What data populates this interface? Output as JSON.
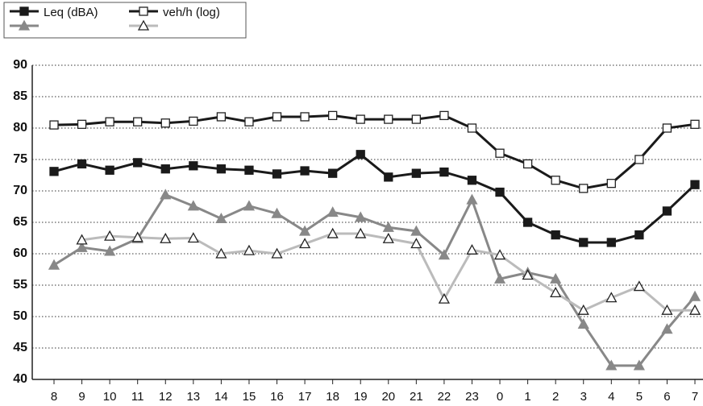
{
  "chart_data": {
    "type": "line",
    "categories": [
      "8",
      "9",
      "10",
      "11",
      "12",
      "13",
      "14",
      "15",
      "16",
      "17",
      "18",
      "19",
      "20",
      "21",
      "22",
      "23",
      "0",
      "1",
      "2",
      "3",
      "4",
      "5",
      "6",
      "7"
    ],
    "ylim": [
      40,
      90
    ],
    "yticks": [
      40,
      45,
      50,
      55,
      60,
      65,
      70,
      75,
      80,
      85,
      90
    ],
    "grid": true,
    "legend": [
      {
        "name": "Leq (dBA)",
        "series": [
          {
            "color": "#1a1a1a",
            "marker": "square",
            "filled": true,
            "values": [
              73.1,
              74.3,
              73.3,
              74.5,
              73.5,
              74.0,
              73.5,
              73.3,
              72.7,
              73.2,
              72.8,
              75.8,
              72.2,
              72.8,
              73.0,
              71.7,
              69.8,
              65.0,
              63.0,
              61.8,
              61.8,
              63.0,
              66.8,
              71.0
            ]
          },
          {
            "color": "#888888",
            "marker": "triangle",
            "filled": true,
            "values": [
              58.2,
              61.0,
              60.4,
              62.4,
              69.4,
              67.6,
              65.6,
              67.6,
              66.4,
              63.6,
              66.6,
              65.8,
              64.2,
              63.6,
              59.8,
              68.6,
              56.0,
              57.0,
              56.0,
              48.8,
              42.2,
              42.2,
              48.0,
              53.2
            ]
          }
        ]
      },
      {
        "name": "veh/h (log)",
        "series": [
          {
            "color": "#1a1a1a",
            "marker": "square",
            "filled": false,
            "values": [
              80.5,
              80.6,
              81.0,
              81.0,
              80.8,
              81.1,
              81.8,
              81.0,
              81.8,
              81.8,
              82.0,
              81.4,
              81.4,
              81.4,
              82.0,
              80.0,
              76.0,
              74.3,
              71.7,
              70.4,
              71.2,
              75.0,
              80.0,
              80.6
            ]
          },
          {
            "color": "#bbbbbb",
            "marker": "triangle",
            "filled": false,
            "values": [
              null,
              62.2,
              62.8,
              62.6,
              62.4,
              62.5,
              60.0,
              60.5,
              60.0,
              61.6,
              63.2,
              63.2,
              62.4,
              61.6,
              52.8,
              60.6,
              59.8,
              56.6,
              53.8,
              51.0,
              53.0,
              54.8,
              51.0,
              51.0
            ]
          }
        ]
      }
    ]
  }
}
